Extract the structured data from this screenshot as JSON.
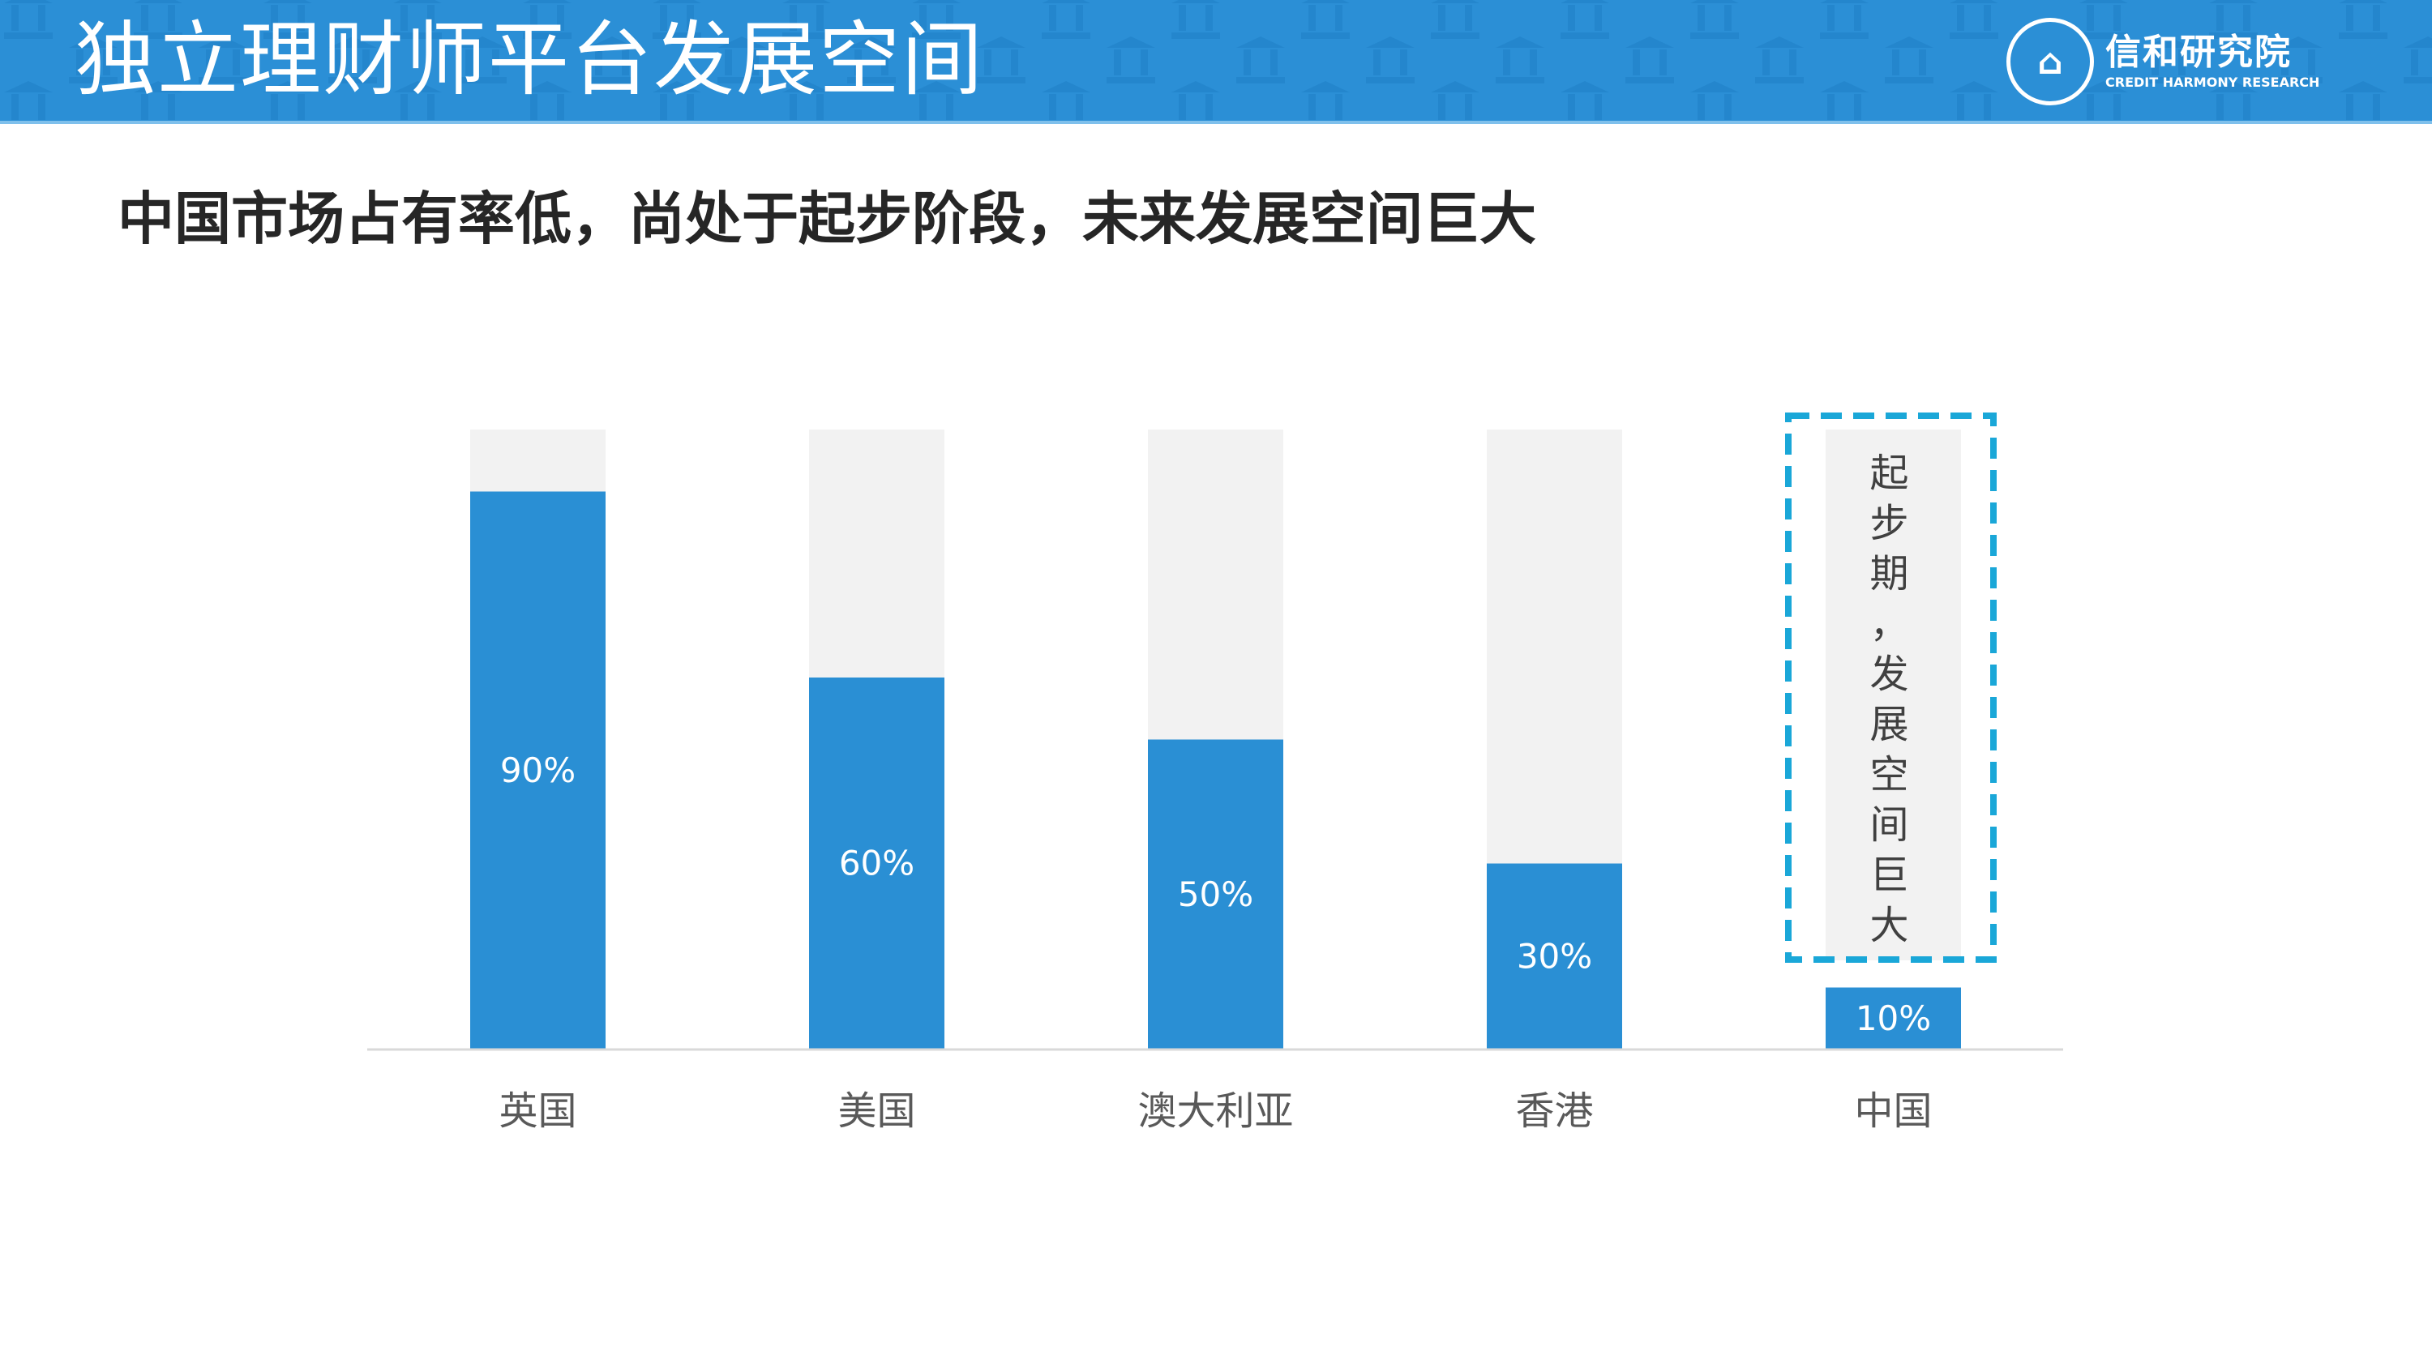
{
  "header": {
    "title": "独立理财师平台发展空间",
    "logo": {
      "name_cn": "信和研究院",
      "name_en": "CREDIT HARMONY RESEARCH"
    }
  },
  "subtitle": "中国市场占有率低，尚处于起步阶段，未来发展空间巨大",
  "colors": {
    "header": "#2b8fd6",
    "bar": "#2a8fd4",
    "track": "#f2f2f2",
    "highlight": "#1aa7d8"
  },
  "chart_data": {
    "type": "bar",
    "title": "",
    "categories": [
      "英国",
      "美国",
      "澳大利亚",
      "香港",
      "中国"
    ],
    "values": [
      90,
      60,
      50,
      30,
      10
    ],
    "data_labels": [
      "90%",
      "60%",
      "50%",
      "30%",
      "10%"
    ],
    "ylim": [
      0,
      100
    ],
    "grid": false,
    "annotation": {
      "category": "中国",
      "text": "起步期，发展空间巨大"
    }
  }
}
